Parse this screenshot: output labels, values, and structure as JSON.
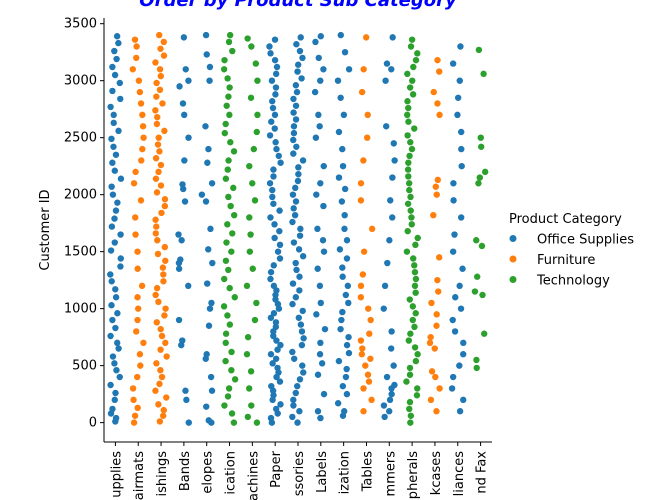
{
  "chart_data": {
    "type": "scatter",
    "subtype": "strip",
    "title": "Order by Product Sub Category",
    "xlabel": "",
    "ylabel": "Customer ID",
    "ylim": [
      -170,
      3550
    ],
    "yticks": [
      0,
      500,
      1000,
      1500,
      2000,
      2500,
      3000,
      3500
    ],
    "grid": false,
    "legend": {
      "title": "Product Category",
      "placement": "center-right",
      "entries": [
        "Office Supplies",
        "Furniture",
        "Technology"
      ]
    },
    "categories": [
      "upplies",
      "hairmats",
      "ishings",
      "Bands",
      "elopes",
      "ication",
      "achines",
      "Paper",
      "ssories",
      "Labels",
      "ization",
      "Tables",
      "mmers",
      "pherals",
      "kcases",
      "liances",
      "nd Fax"
    ],
    "category_series": [
      "Office Supplies",
      "Furniture",
      "Furniture",
      "Office Supplies",
      "Office Supplies",
      "Technology",
      "Technology",
      "Office Supplies",
      "Office Supplies",
      "Office Supplies",
      "Office Supplies",
      "Furniture",
      "Office Supplies",
      "Technology",
      "Furniture",
      "Office Supplies",
      "Technology"
    ],
    "series": [
      {
        "name": "Office Supplies",
        "color": "#1f77b4"
      },
      {
        "name": "Furniture",
        "color": "#ff7f0e"
      },
      {
        "name": "Technology",
        "color": "#2ca02c"
      }
    ],
    "values": [
      [
        10,
        40,
        80,
        120,
        200,
        260,
        330,
        400,
        460,
        520,
        580,
        650,
        700,
        760,
        830,
        900,
        960,
        1030,
        1100,
        1170,
        1240,
        1300,
        1370,
        1440,
        1510,
        1580,
        1650,
        1720,
        1790,
        1860,
        1930,
        2000,
        2070,
        2140,
        2210,
        2280,
        2350,
        2420,
        2490,
        2560,
        2630,
        2700,
        2770,
        2840,
        2910,
        2980,
        3050,
        3120,
        3190,
        3260,
        3330,
        3390
      ],
      [
        0,
        60,
        130,
        200,
        300,
        400,
        500,
        600,
        700,
        800,
        900,
        1000,
        1100,
        1200,
        1350,
        1500,
        1650,
        1800,
        1950,
        2100,
        2200,
        2300,
        2400,
        2500,
        2600,
        2700,
        2800,
        2900,
        3000,
        3100,
        3200,
        3300,
        3360
      ],
      [
        10,
        60,
        110,
        160,
        220,
        280,
        340,
        400,
        460,
        520,
        580,
        640,
        700,
        760,
        820,
        880,
        940,
        1000,
        1060,
        1120,
        1180,
        1240,
        1300,
        1360,
        1420,
        1480,
        1540,
        1600,
        1660,
        1720,
        1780,
        1840,
        1900,
        1960,
        2020,
        2080,
        2140,
        2200,
        2260,
        2320,
        2380,
        2440,
        2500,
        2560,
        2620,
        2680,
        2740,
        2800,
        2860,
        2920,
        2980,
        3040,
        3100,
        3160,
        3220,
        3280,
        3340,
        3400
      ],
      [
        0,
        200,
        280,
        680,
        720,
        900,
        1200,
        1350,
        1400,
        1430,
        1600,
        1650,
        1940,
        2050,
        2090,
        2300,
        2500,
        2700,
        2800,
        2950,
        3000,
        3100,
        3380
      ],
      [
        0,
        20,
        140,
        280,
        400,
        560,
        600,
        850,
        1000,
        1050,
        1220,
        1400,
        1520,
        1700,
        1940,
        2000,
        2100,
        2280,
        2400,
        2600,
        3000,
        3120,
        3230,
        3400
      ],
      [
        0,
        80,
        150,
        230,
        300,
        380,
        460,
        540,
        620,
        700,
        780,
        860,
        940,
        1020,
        1100,
        1180,
        1260,
        1340,
        1420,
        1500,
        1580,
        1660,
        1740,
        1820,
        1900,
        1980,
        2060,
        2140,
        2220,
        2300,
        2380,
        2460,
        2540,
        2620,
        2700,
        2780,
        2860,
        2940,
        3020,
        3100,
        3180,
        3260,
        3340,
        3400
      ],
      [
        0,
        50,
        150,
        300,
        450,
        600,
        750,
        900,
        1050,
        1200,
        1350,
        1500,
        1650,
        1800,
        1950,
        2100,
        2250,
        2400,
        2550,
        2700,
        2850,
        3000,
        3150,
        3300,
        3370
      ],
      [
        0,
        40,
        80,
        120,
        160,
        200,
        240,
        280,
        320,
        360,
        400,
        440,
        480,
        520,
        560,
        600,
        640,
        680,
        720,
        760,
        800,
        840,
        880,
        920,
        960,
        1000,
        1040,
        1080,
        1120,
        1160,
        1200,
        1260,
        1320,
        1380,
        1440,
        1500,
        1560,
        1620,
        1680,
        1740,
        1800,
        1860,
        1920,
        1980,
        2040,
        2100,
        2160,
        2220,
        2280,
        2340,
        2400,
        2460,
        2520,
        2580,
        2640,
        2700,
        2760,
        2820,
        2880,
        2940,
        3000,
        3060,
        3120,
        3180,
        3240,
        3300,
        3360
      ],
      [
        0,
        50,
        100,
        150,
        200,
        260,
        320,
        380,
        440,
        500,
        560,
        620,
        680,
        740,
        800,
        860,
        920,
        980,
        1040,
        1100,
        1160,
        1220,
        1280,
        1340,
        1400,
        1460,
        1520,
        1580,
        1640,
        1700,
        1760,
        1820,
        1880,
        1940,
        2000,
        2060,
        2120,
        2180,
        2240,
        2300,
        2360,
        2420,
        2480,
        2540,
        2600,
        2660,
        2720,
        2780,
        2840,
        2900,
        2960,
        3020,
        3080,
        3140,
        3200,
        3260,
        3320,
        3380
      ],
      [
        40,
        100,
        250,
        420,
        520,
        600,
        700,
        820,
        950,
        1050,
        1200,
        1350,
        1500,
        1600,
        1700,
        1900,
        2000,
        2100,
        2250,
        2500,
        2600,
        2700,
        2900,
        3000,
        3100,
        3200,
        3340,
        3390
      ],
      [
        60,
        100,
        170,
        250,
        320,
        400,
        470,
        540,
        610,
        680,
        750,
        820,
        900,
        970,
        1050,
        1120,
        1200,
        1280,
        1360,
        1440,
        1520,
        1600,
        1700,
        1820,
        1940,
        2050,
        2150,
        2250,
        2400,
        2550,
        2700,
        2850,
        3000,
        3100,
        3250,
        3400
      ],
      [
        100,
        200,
        300,
        360,
        420,
        500,
        560,
        600,
        650,
        720,
        780,
        900,
        1000,
        1100,
        1200,
        1300,
        1500,
        1700,
        1950,
        2100,
        2300,
        2500,
        2700,
        2900,
        3100,
        3380
      ],
      [
        50,
        100,
        150,
        200,
        250,
        300,
        330,
        400,
        500,
        650,
        800,
        1000,
        1200,
        1400,
        1600,
        1800,
        1950,
        2150,
        2300,
        2450,
        2600,
        3000,
        3100,
        3150,
        3380
      ],
      [
        0,
        60,
        120,
        180,
        240,
        300,
        360,
        420,
        480,
        540,
        600,
        660,
        720,
        780,
        840,
        900,
        960,
        1020,
        1080,
        1140,
        1200,
        1260,
        1320,
        1380,
        1440,
        1500,
        1560,
        1620,
        1680,
        1740,
        1800,
        1860,
        1920,
        1980,
        2040,
        2100,
        2160,
        2220,
        2280,
        2340,
        2400,
        2460,
        2520,
        2580,
        2640,
        2700,
        2760,
        2820,
        2880,
        2940,
        3000,
        3060,
        3120,
        3180,
        3240,
        3300,
        3360
      ],
      [
        100,
        200,
        300,
        400,
        450,
        650,
        700,
        750,
        850,
        950,
        1050,
        1150,
        1250,
        1450,
        1820,
        2000,
        2070,
        2130,
        2700,
        2800,
        2900,
        3080,
        3180
      ],
      [
        100,
        200,
        300,
        400,
        500,
        600,
        700,
        800,
        900,
        1000,
        1100,
        1200,
        1350,
        1500,
        1650,
        1800,
        1950,
        2100,
        2250,
        2400,
        2550,
        2700,
        2850,
        3000,
        3150,
        3300
      ],
      [
        480,
        550,
        780,
        1120,
        1150,
        1280,
        1550,
        1600,
        2100,
        2150,
        2200,
        2420,
        2500,
        3060,
        3270
      ]
    ]
  }
}
